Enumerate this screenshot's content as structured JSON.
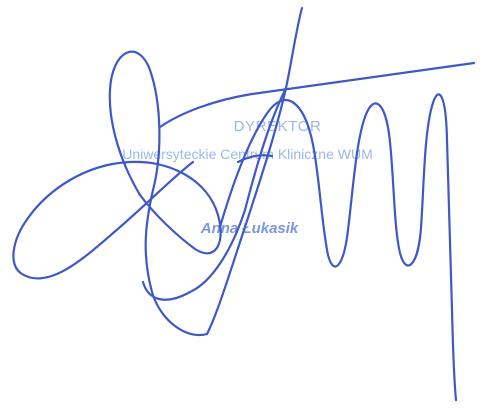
{
  "stamp": {
    "title": "DYREKTOR",
    "unit": "Uniwersyteckie Centrum Kliniczne WUM",
    "name": "Anna Łukasik"
  },
  "colors": {
    "stamp_text": "#9db7e6",
    "stamp_name": "#7f96da",
    "ink": "#3f58c8"
  }
}
